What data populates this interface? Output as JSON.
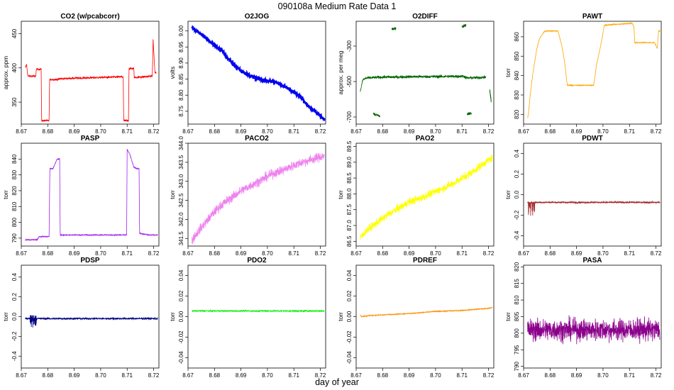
{
  "figure": {
    "title": "090108a   Medium Rate Data 1",
    "xlabel": "day of year"
  },
  "chart_data": [
    {
      "type": "line",
      "title": "CO2 (w/pcabcorr)",
      "ylabel": "approx. ppm",
      "color": "#ff0000",
      "xlim": [
        8.67,
        8.722
      ],
      "ylim": [
        318,
        468
      ],
      "xticks": [
        "8.67",
        "8.68",
        "8.69",
        "8.70",
        "8.71",
        "8.72"
      ],
      "yticks": [
        "350",
        "400",
        "450"
      ],
      "noise": 1.5,
      "series": [
        {
          "x": [
            8.6715,
            8.672,
            8.6725,
            8.6755,
            8.6757,
            8.6775,
            8.6777,
            8.6805,
            8.6807,
            8.684,
            8.6842,
            8.69,
            8.7,
            8.7085,
            8.7087,
            8.7105,
            8.7107,
            8.7125,
            8.7127,
            8.7195,
            8.7198,
            8.7205,
            8.7208,
            8.721
          ],
          "y": [
            400,
            405,
            388,
            388,
            398,
            398,
            323,
            323,
            383,
            383,
            384,
            385,
            386,
            387,
            323,
            323,
            399,
            399,
            386,
            388,
            442,
            392,
            394,
            392
          ]
        }
      ]
    },
    {
      "type": "line",
      "title": "O2JOG",
      "ylabel": "volts",
      "color": "#0000ee",
      "xlim": [
        8.67,
        8.722
      ],
      "ylim": [
        8.71,
        9.03
      ],
      "xticks": [
        "8.67",
        "8.68",
        "8.69",
        "8.70",
        "8.71",
        "8.72"
      ],
      "yticks": [
        "8.75",
        "8.80",
        "8.85",
        "8.90",
        "8.95",
        "9.00"
      ],
      "noise": 0.004,
      "series": [
        {
          "x": [
            8.6715,
            8.675,
            8.68,
            8.6835,
            8.6837,
            8.69,
            8.695,
            8.7,
            8.7035,
            8.708,
            8.7135,
            8.7137,
            8.718,
            8.7215
          ],
          "y": [
            9.01,
            8.99,
            8.955,
            8.935,
            8.925,
            8.875,
            8.855,
            8.845,
            8.84,
            8.82,
            8.79,
            8.78,
            8.75,
            8.725
          ]
        }
      ]
    },
    {
      "type": "scatter",
      "title": "O2DIFF",
      "ylabel": "approx. per meg",
      "color": "#006400",
      "xlim": [
        8.67,
        8.722
      ],
      "ylim": [
        -740,
        -160
      ],
      "xticks": [
        "8.67",
        "8.68",
        "8.69",
        "8.70",
        "8.71",
        "8.72"
      ],
      "yticks": [
        "-700",
        "-500",
        "-300"
      ],
      "noise": 8,
      "series": [
        {
          "x": [
            8.6715,
            8.6725,
            8.674,
            8.68,
            8.6845,
            8.69,
            8.7,
            8.7105,
            8.712,
            8.716,
            8.719
          ],
          "y": [
            -560,
            -490,
            -480,
            -475,
            -475,
            -473,
            -472,
            -470,
            -480,
            -478,
            -475
          ]
        }
      ],
      "segments": [
        {
          "x": [
            8.6765,
            8.679
          ],
          "y": [
            -683,
            -695
          ]
        },
        {
          "x": [
            8.6835,
            8.685
          ],
          "y": [
            -205,
            -200
          ]
        },
        {
          "x": [
            8.71,
            8.7115
          ],
          "y": [
            -190,
            -182
          ]
        },
        {
          "x": [
            8.712,
            8.7135
          ],
          "y": [
            -682,
            -678
          ]
        },
        {
          "x": [
            8.7205,
            8.721
          ],
          "y": [
            -550,
            -610
          ]
        }
      ]
    },
    {
      "type": "line",
      "title": "PAWT",
      "ylabel": "torr",
      "color": "#ffa500",
      "xlim": [
        8.67,
        8.722
      ],
      "ylim": [
        815,
        868
      ],
      "xticks": [
        "8.67",
        "8.68",
        "8.69",
        "8.70",
        "8.71",
        "8.72"
      ],
      "yticks": [
        "820",
        "830",
        "840",
        "850",
        "860"
      ],
      "noise": 0.25,
      "series": [
        {
          "x": [
            8.6715,
            8.6718,
            8.6725,
            8.6735,
            8.675,
            8.676,
            8.678,
            8.683,
            8.6845,
            8.6855,
            8.6865,
            8.6895,
            8.6965,
            8.6975,
            8.6995,
            8.7005,
            8.711,
            8.7117,
            8.712,
            8.718,
            8.7195,
            8.7205,
            8.721,
            8.722
          ],
          "y": [
            818,
            820,
            830,
            841,
            854,
            859,
            863,
            863,
            855,
            847,
            835,
            835,
            835,
            845,
            858,
            866,
            867,
            865,
            857,
            857,
            857,
            854,
            863,
            863
          ]
        }
      ]
    },
    {
      "type": "line",
      "title": "PASP",
      "ylabel": "torr",
      "color": "#a020f0",
      "xlim": [
        8.67,
        8.722
      ],
      "ylim": [
        785,
        850
      ],
      "xticks": [
        "8.67",
        "8.68",
        "8.69",
        "8.70",
        "8.71",
        "8.72"
      ],
      "yticks": [
        "790",
        "800",
        "810",
        "820",
        "830",
        "840"
      ],
      "noise": 0.3,
      "series": [
        {
          "x": [
            8.6715,
            8.676,
            8.6768,
            8.678,
            8.6805,
            8.6808,
            8.682,
            8.6835,
            8.6845,
            8.6847,
            8.69,
            8.7,
            8.708,
            8.7098,
            8.71,
            8.711,
            8.7125,
            8.7135,
            8.7145,
            8.7147,
            8.718,
            8.7215
          ],
          "y": [
            789,
            789,
            791,
            791,
            791,
            834,
            834,
            840,
            840,
            792,
            792,
            792,
            792,
            792,
            846,
            843,
            835,
            834,
            834,
            793,
            792,
            792
          ]
        }
      ]
    },
    {
      "type": "line",
      "title": "PACO2",
      "ylabel": "torr",
      "color": "#ee82ee",
      "xlim": [
        8.67,
        8.722
      ],
      "ylim": [
        341.3,
        344.0
      ],
      "xticks": [
        "8.67",
        "8.68",
        "8.69",
        "8.70",
        "8.71",
        "8.72"
      ],
      "yticks": [
        "341.5",
        "342.0",
        "342.5",
        "343.0",
        "343.5",
        "344.0"
      ],
      "noise": 0.12,
      "series": [
        {
          "x": [
            8.6715,
            8.674,
            8.677,
            8.68,
            8.683,
            8.686,
            8.69,
            8.694,
            8.698,
            8.702,
            8.706,
            8.71,
            8.714,
            8.718,
            8.7215
          ],
          "y": [
            341.45,
            341.7,
            341.95,
            342.2,
            342.4,
            342.55,
            342.75,
            342.9,
            343.05,
            343.2,
            343.3,
            343.42,
            343.52,
            343.6,
            343.67
          ]
        }
      ]
    },
    {
      "type": "line",
      "title": "PAO2",
      "ylabel": "torr",
      "color": "#ffff00",
      "xlim": [
        8.67,
        8.722
      ],
      "ylim": [
        86.35,
        89.6
      ],
      "xticks": [
        "8.67",
        "8.68",
        "8.69",
        "8.70",
        "8.71",
        "8.72"
      ],
      "yticks": [
        "86.5",
        "87.0",
        "87.5",
        "88.0",
        "88.5",
        "89.0",
        "89.5"
      ],
      "noise": 0.12,
      "series": [
        {
          "x": [
            8.6715,
            8.674,
            8.678,
            8.682,
            8.686,
            8.69,
            8.694,
            8.698,
            8.702,
            8.706,
            8.71,
            8.714,
            8.718,
            8.7215
          ],
          "y": [
            86.6,
            86.85,
            87.1,
            87.35,
            87.55,
            87.75,
            87.85,
            88.0,
            88.15,
            88.3,
            88.5,
            88.7,
            88.95,
            89.15
          ]
        }
      ]
    },
    {
      "type": "line",
      "title": "PDWT",
      "ylabel": "torr",
      "color": "#a52a2a",
      "xlim": [
        8.67,
        8.722
      ],
      "ylim": [
        -0.5,
        0.5
      ],
      "xticks": [
        "8.67",
        "8.68",
        "8.69",
        "8.70",
        "8.71",
        "8.72"
      ],
      "yticks": [
        "-0.4",
        "-0.2",
        "0.0",
        "0.2",
        "0.4"
      ],
      "noise": 0.008,
      "series": [
        {
          "x": [
            8.6715,
            8.69,
            8.7215
          ],
          "y": [
            -0.075,
            -0.075,
            -0.075
          ]
        }
      ],
      "spike": {
        "x": 8.673,
        "lo": -0.13,
        "hi": 0.0
      }
    },
    {
      "type": "line",
      "title": "PDSP",
      "ylabel": "torr",
      "color": "#000080",
      "xlim": [
        8.67,
        8.722
      ],
      "ylim": [
        -0.52,
        0.52
      ],
      "xticks": [
        "8.67",
        "8.68",
        "8.69",
        "8.70",
        "8.71",
        "8.72"
      ],
      "yticks": [
        "-0.4",
        "-0.2",
        "0.0",
        "0.2",
        "0.4"
      ],
      "noise": 0.01,
      "series": [
        {
          "x": [
            8.6715,
            8.69,
            8.7215
          ],
          "y": [
            -0.02,
            -0.02,
            -0.02
          ]
        }
      ],
      "spike": {
        "x": 8.6745,
        "lo": -0.09,
        "hi": 0.04
      }
    },
    {
      "type": "line",
      "title": "PDO2",
      "ylabel": "torr",
      "color": "#00ee00",
      "xlim": [
        8.67,
        8.722
      ],
      "ylim": [
        -0.05,
        0.05
      ],
      "xticks": [
        "8.67",
        "8.68",
        "8.69",
        "8.70",
        "8.71",
        "8.72"
      ],
      "yticks": [
        "-0.04",
        "-0.02",
        "0.00",
        "0.02",
        "0.04"
      ],
      "noise": 0.0006,
      "series": [
        {
          "x": [
            8.6715,
            8.7,
            8.7215
          ],
          "y": [
            0.0055,
            0.0055,
            0.0055
          ]
        }
      ]
    },
    {
      "type": "line",
      "title": "PDREF",
      "ylabel": "torr",
      "color": "#ff8c00",
      "xlim": [
        8.67,
        8.722
      ],
      "ylim": [
        -0.05,
        0.05
      ],
      "xticks": [
        "8.67",
        "8.68",
        "8.69",
        "8.70",
        "8.71",
        "8.72"
      ],
      "yticks": [
        "-0.04",
        "-0.02",
        "0.00",
        "0.02",
        "0.04"
      ],
      "noise": 0.0004,
      "series": [
        {
          "x": [
            8.6715,
            8.672,
            8.675,
            8.69,
            8.7,
            8.71,
            8.72,
            8.7215
          ],
          "y": [
            0.002,
            0.0,
            0.001,
            0.003,
            0.005,
            0.006,
            0.008,
            0.009
          ]
        }
      ]
    },
    {
      "type": "line",
      "title": "PASA",
      "ylabel": "torr",
      "color": "#8b008b",
      "xlim": [
        8.67,
        8.722
      ],
      "ylim": [
        789.5,
        820.5
      ],
      "xticks": [
        "8.67",
        "8.68",
        "8.69",
        "8.70",
        "8.71",
        "8.72"
      ],
      "yticks": [
        "790",
        "795",
        "800",
        "805",
        "810",
        "815",
        "820"
      ],
      "noise": 3.2,
      "series": [
        {
          "x": [
            8.6715,
            8.7,
            8.7215
          ],
          "y": [
            801,
            801,
            801
          ]
        }
      ]
    }
  ]
}
